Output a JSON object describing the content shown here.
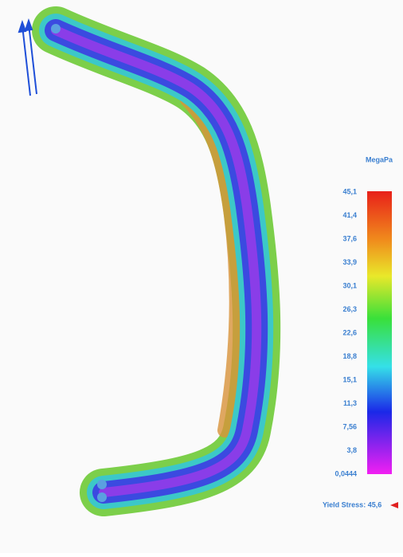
{
  "legend": {
    "unit": "MegaPa",
    "labels": [
      "45,1",
      "41,4",
      "37,6",
      "33,9",
      "30,1",
      "26,3",
      "22,6",
      "18,8",
      "15,1",
      "11,3",
      "7,56",
      "3,8",
      "0,0444"
    ]
  },
  "yield_stress": "Yield Stress: 45,6"
}
